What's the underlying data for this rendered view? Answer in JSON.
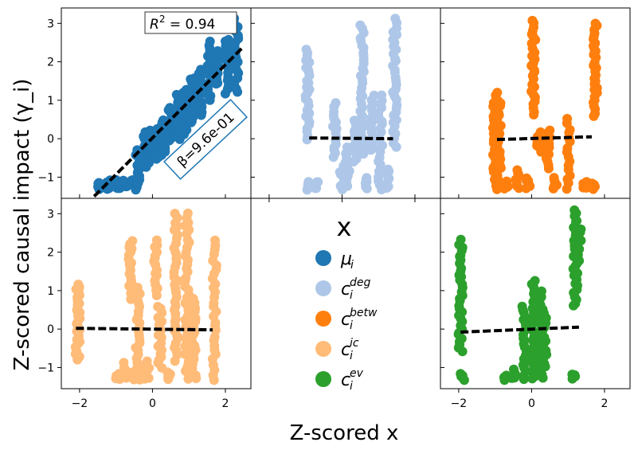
{
  "chart_data": {
    "type": "scatter",
    "ylabel": "Z-scored causal impact (γ_i)",
    "xlabel": "Z-scored x",
    "xlim": [
      -2.5,
      2.7
    ],
    "ylim": [
      -1.55,
      3.4
    ],
    "xticks": [
      -2,
      0,
      2
    ],
    "yticks": [
      -1,
      0,
      1,
      2,
      3
    ],
    "annotations": {
      "r2_label": "R",
      "r2_sup": "2",
      "r2_value": " =  0.94",
      "beta_label": "β=9.6e-01"
    },
    "legend": {
      "title": "x",
      "entries": [
        {
          "base": "μ",
          "sub": "i",
          "sup": "",
          "color": "#1f77b4"
        },
        {
          "base": "c",
          "sub": "i",
          "sup": "deg",
          "color": "#aec7e8"
        },
        {
          "base": "c",
          "sub": "i",
          "sup": "betw",
          "color": "#ff7f0e"
        },
        {
          "base": "c",
          "sub": "i",
          "sup": "ic",
          "color": "#ffbb78"
        },
        {
          "base": "c",
          "sub": "i",
          "sup": "ev",
          "color": "#2ca02c"
        }
      ]
    },
    "panels": [
      {
        "series": "μ_i",
        "color": "#1f77b4",
        "x_ticks_visible": false,
        "fit": {
          "x": [
            -1.6,
            2.45
          ],
          "y": [
            -1.5,
            2.35
          ]
        },
        "clusters": [
          {
            "x": -1.45,
            "ymin": -1.3,
            "ymax": -1.15,
            "n": 14
          },
          {
            "x": -1.2,
            "ymin": -1.3,
            "ymax": -1.1,
            "n": 14
          },
          {
            "x": -0.95,
            "ymin": -1.3,
            "ymax": -1.1,
            "n": 14
          },
          {
            "x": -0.75,
            "ymin": -1.25,
            "ymax": -1.1,
            "n": 12
          },
          {
            "x": -0.55,
            "ymin": -1.2,
            "ymax": -1.05,
            "n": 10
          },
          {
            "x": -0.4,
            "ymin": -1.3,
            "ymax": -0.3,
            "n": 18
          },
          {
            "x": -0.2,
            "ymin": -0.75,
            "ymax": 0.15,
            "n": 18
          },
          {
            "x": -0.05,
            "ymin": -0.6,
            "ymax": 0.2,
            "n": 18
          },
          {
            "x": 0.15,
            "ymin": -0.5,
            "ymax": 0.25,
            "n": 16
          },
          {
            "x": 0.3,
            "ymin": -0.4,
            "ymax": 0.5,
            "n": 14
          },
          {
            "x": 0.5,
            "ymin": -0.05,
            "ymax": 0.8,
            "n": 16
          },
          {
            "x": 0.7,
            "ymin": 0.0,
            "ymax": 1.15,
            "n": 18
          },
          {
            "x": 0.9,
            "ymin": 0.1,
            "ymax": 1.25,
            "n": 18
          },
          {
            "x": 1.1,
            "ymin": 0.4,
            "ymax": 1.6,
            "n": 18
          },
          {
            "x": 1.3,
            "ymin": 0.6,
            "ymax": 1.8,
            "n": 16
          },
          {
            "x": 1.55,
            "ymin": 1.0,
            "ymax": 2.5,
            "n": 18
          },
          {
            "x": 1.8,
            "ymin": 1.4,
            "ymax": 2.3,
            "n": 18
          },
          {
            "x": 2.05,
            "ymin": 1.2,
            "ymax": 2.6,
            "n": 18
          },
          {
            "x": 2.3,
            "ymin": 1.2,
            "ymax": 3.1,
            "n": 20
          }
        ]
      },
      {
        "series": "c_i^deg",
        "color": "#aec7e8",
        "x_ticks_visible": false,
        "fit": {
          "x": [
            -0.9,
            1.4
          ],
          "y": [
            0.02,
            0.0
          ]
        },
        "clusters": [
          {
            "x": -0.95,
            "ymin": 0.0,
            "ymax": 2.3,
            "n": 28
          },
          {
            "x": -0.9,
            "ymin": -1.3,
            "ymax": -1.1,
            "n": 6
          },
          {
            "x": -0.7,
            "ymin": -1.3,
            "ymax": -1.1,
            "n": 6
          },
          {
            "x": -0.2,
            "ymin": -0.5,
            "ymax": 0.9,
            "n": 16
          },
          {
            "x": 0.0,
            "ymin": -1.3,
            "ymax": -0.7,
            "n": 8
          },
          {
            "x": 0.15,
            "ymin": -1.25,
            "ymax": -0.2,
            "n": 12
          },
          {
            "x": 0.35,
            "ymin": -0.6,
            "ymax": 0.5,
            "n": 12
          },
          {
            "x": 0.55,
            "ymin": -0.4,
            "ymax": 2.95,
            "n": 34
          },
          {
            "x": 0.7,
            "ymin": -1.3,
            "ymax": -1.0,
            "n": 6
          },
          {
            "x": 0.85,
            "ymin": -0.3,
            "ymax": 1.1,
            "n": 16
          },
          {
            "x": 1.05,
            "ymin": -1.3,
            "ymax": 1.1,
            "n": 24
          },
          {
            "x": 1.25,
            "ymin": -1.3,
            "ymax": -0.8,
            "n": 8
          },
          {
            "x": 1.45,
            "ymin": -0.2,
            "ymax": 3.1,
            "n": 34
          }
        ]
      },
      {
        "series": "c_i^betw",
        "color": "#ff7f0e",
        "x_ticks_visible": false,
        "fit": {
          "x": [
            -0.95,
            1.65
          ],
          "y": [
            -0.02,
            0.05
          ]
        },
        "clusters": [
          {
            "x": -1.0,
            "ymin": -1.3,
            "ymax": 1.2,
            "n": 36
          },
          {
            "x": -0.9,
            "ymin": -1.3,
            "ymax": 1.0,
            "n": 30
          },
          {
            "x": -0.7,
            "ymin": -1.3,
            "ymax": -1.1,
            "n": 6
          },
          {
            "x": -0.4,
            "ymin": -1.3,
            "ymax": -0.8,
            "n": 8
          },
          {
            "x": -0.1,
            "ymin": -1.3,
            "ymax": -1.0,
            "n": 6
          },
          {
            "x": 0.05,
            "ymin": 0.6,
            "ymax": 3.1,
            "n": 28
          },
          {
            "x": 0.2,
            "ymin": -0.35,
            "ymax": 0.15,
            "n": 8
          },
          {
            "x": 0.45,
            "ymin": -0.8,
            "ymax": 0.2,
            "n": 12
          },
          {
            "x": 0.65,
            "ymin": -1.3,
            "ymax": -1.0,
            "n": 6
          },
          {
            "x": 1.0,
            "ymin": -1.3,
            "ymax": 0.5,
            "n": 16
          },
          {
            "x": 1.45,
            "ymin": -1.3,
            "ymax": -1.15,
            "n": 5
          },
          {
            "x": 1.7,
            "ymin": -1.3,
            "ymax": -1.15,
            "n": 5
          },
          {
            "x": 1.75,
            "ymin": 0.6,
            "ymax": 3.0,
            "n": 30
          }
        ]
      },
      {
        "series": "c_i^ic",
        "color": "#ffbb78",
        "x_ticks_visible": true,
        "fit": {
          "x": [
            -2.1,
            1.65
          ],
          "y": [
            0.02,
            -0.02
          ]
        },
        "clusters": [
          {
            "x": -2.05,
            "ymin": -0.8,
            "ymax": 1.15,
            "n": 30
          },
          {
            "x": -0.95,
            "ymin": -1.3,
            "ymax": -1.15,
            "n": 5
          },
          {
            "x": -0.75,
            "ymin": -1.3,
            "ymax": -0.9,
            "n": 6
          },
          {
            "x": -0.6,
            "ymin": 0.8,
            "ymax": 2.3,
            "n": 20
          },
          {
            "x": -0.55,
            "ymin": -1.3,
            "ymax": -1.1,
            "n": 5
          },
          {
            "x": -0.4,
            "ymin": -1.3,
            "ymax": 1.1,
            "n": 24
          },
          {
            "x": -0.25,
            "ymin": -1.3,
            "ymax": -1.1,
            "n": 5
          },
          {
            "x": -0.15,
            "ymin": -1.3,
            "ymax": -0.85,
            "n": 6
          },
          {
            "x": 0.1,
            "ymin": 0.9,
            "ymax": 2.3,
            "n": 16
          },
          {
            "x": 0.2,
            "ymin": -1.0,
            "ymax": 0.6,
            "n": 18
          },
          {
            "x": 0.45,
            "ymin": -1.3,
            "ymax": -1.15,
            "n": 5
          },
          {
            "x": 0.65,
            "ymin": -0.8,
            "ymax": 3.0,
            "n": 36
          },
          {
            "x": 0.95,
            "ymin": -1.3,
            "ymax": 3.0,
            "n": 40
          },
          {
            "x": 1.15,
            "ymin": -1.3,
            "ymax": 0.8,
            "n": 18
          },
          {
            "x": 1.7,
            "ymin": -1.3,
            "ymax": 2.3,
            "n": 30
          }
        ]
      },
      {
        "series": "c_i^ev",
        "color": "#2ca02c",
        "x_ticks_visible": true,
        "fit": {
          "x": [
            -1.95,
            1.3
          ],
          "y": [
            -0.08,
            0.05
          ]
        },
        "clusters": [
          {
            "x": -1.95,
            "ymin": -0.6,
            "ymax": 2.3,
            "n": 34
          },
          {
            "x": -1.9,
            "ymin": -1.3,
            "ymax": -1.15,
            "n": 5
          },
          {
            "x": -0.7,
            "ymin": -1.3,
            "ymax": -1.2,
            "n": 4
          },
          {
            "x": -0.5,
            "ymin": -1.3,
            "ymax": -1.05,
            "n": 5
          },
          {
            "x": -0.2,
            "ymin": -1.3,
            "ymax": 0.6,
            "n": 22
          },
          {
            "x": 0.05,
            "ymin": -1.3,
            "ymax": 1.25,
            "n": 30
          },
          {
            "x": 0.25,
            "ymin": -1.3,
            "ymax": 1.0,
            "n": 26
          },
          {
            "x": 0.35,
            "ymin": -1.0,
            "ymax": 0.5,
            "n": 14
          },
          {
            "x": 1.15,
            "ymin": -1.3,
            "ymax": -1.15,
            "n": 5
          },
          {
            "x": 1.2,
            "ymin": 0.6,
            "ymax": 3.1,
            "n": 30
          },
          {
            "x": 1.3,
            "ymin": 1.8,
            "ymax": 2.6,
            "n": 12
          }
        ]
      }
    ]
  }
}
